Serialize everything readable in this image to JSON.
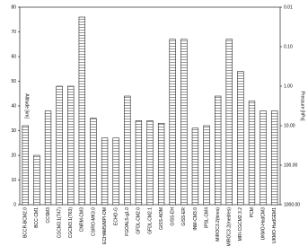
{
  "chart_data": {
    "type": "bar",
    "y_label": "Altitude [km]",
    "y2_label": "Pressure [hPa]",
    "categories": [
      "BCCR-BCM2.0",
      "BCC-CM1",
      "CCSM3",
      "CGCM3.1(T47)",
      "CGCM3.1(T63)",
      "CNRM-CM3",
      "CSIRO-MK3.0",
      "ECHAM5/MPI-OM",
      "ECHO-G",
      "FGOALS-g1.0",
      "GFDL-CM2.0",
      "GFDL-CM2.1",
      "GISS-AOM",
      "GISS-EH",
      "GISS-ER",
      "INM-CM3.0",
      "IPSL-CM4",
      "MIROC3.2(hires)",
      "MIROC3.2(medres)",
      "MRI-CGCM2.3.2",
      "PCM",
      "UKMO-HadCM3",
      "UKMO-HadGEM1"
    ],
    "values": [
      32,
      20,
      38,
      48,
      48,
      76,
      35,
      27,
      27,
      44,
      34,
      34,
      33,
      67,
      67,
      31,
      32,
      44,
      67,
      54,
      42,
      38,
      38
    ],
    "color": "#ffffff",
    "ylim": [
      0,
      80
    ],
    "yticks": [
      0,
      10,
      20,
      30,
      40,
      50,
      60,
      70,
      80
    ],
    "y2lim": [
      1000,
      0.01
    ],
    "y2log": true,
    "y2ticks": [
      {
        "value": 0.01,
        "label": "0.01"
      },
      {
        "value": 0.1,
        "label": "0.10"
      },
      {
        "value": 1,
        "label": "1.00"
      },
      {
        "value": 10,
        "label": "10.00"
      },
      {
        "value": 100,
        "label": "100.00"
      },
      {
        "value": 1000,
        "label": "1000.00"
      }
    ]
  }
}
